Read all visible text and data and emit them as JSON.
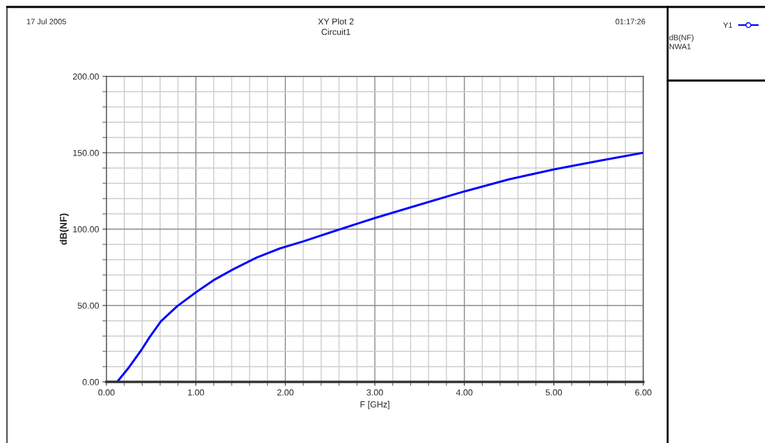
{
  "chart_data": {
    "type": "line",
    "title": "XY Plot 2",
    "subtitle": "Circuit1",
    "xlabel": "F [GHz]",
    "ylabel": "dB(NF)",
    "annotations": [
      "17 Jul 2005",
      "01:17:26",
      "dB(NF)",
      "NWA1"
    ],
    "series": [
      {
        "name": "Y1",
        "color": "#0000ff",
        "x": [
          0,
          0.12,
          0.24,
          0.39,
          0.48,
          0.61,
          0.79,
          1.0,
          1.21,
          1.42,
          1.68,
          1.94,
          2.2,
          2.52,
          3.0,
          3.5,
          4.0,
          4.5,
          5.0,
          5.5,
          6.0
        ],
        "values": [
          0,
          0,
          8.6,
          20.8,
          29,
          39.7,
          49.5,
          58.6,
          67,
          73.8,
          81.4,
          87.4,
          92,
          98.2,
          107.3,
          116,
          124.7,
          132.6,
          139.1,
          144.7,
          150
        ]
      }
    ],
    "xlim": [
      0,
      6
    ],
    "ylim": [
      0,
      200
    ],
    "xticks": [
      {
        "value": 0,
        "label": "0.00"
      },
      {
        "value": 1,
        "label": "1.00"
      },
      {
        "value": 2,
        "label": "2.00"
      },
      {
        "value": 3,
        "label": "3.00"
      },
      {
        "value": 4,
        "label": "4.00"
      },
      {
        "value": 5,
        "label": "5.00"
      },
      {
        "value": 6,
        "label": "6.00"
      }
    ],
    "yticks": [
      {
        "value": 0,
        "label": "0.00"
      },
      {
        "value": 50,
        "label": "50.00"
      },
      {
        "value": 100,
        "label": "100.00"
      },
      {
        "value": 150,
        "label": "150.00"
      },
      {
        "value": 200,
        "label": "200.00"
      }
    ],
    "grid": true,
    "legend": "right",
    "marker": "none",
    "line_style": "solid"
  }
}
